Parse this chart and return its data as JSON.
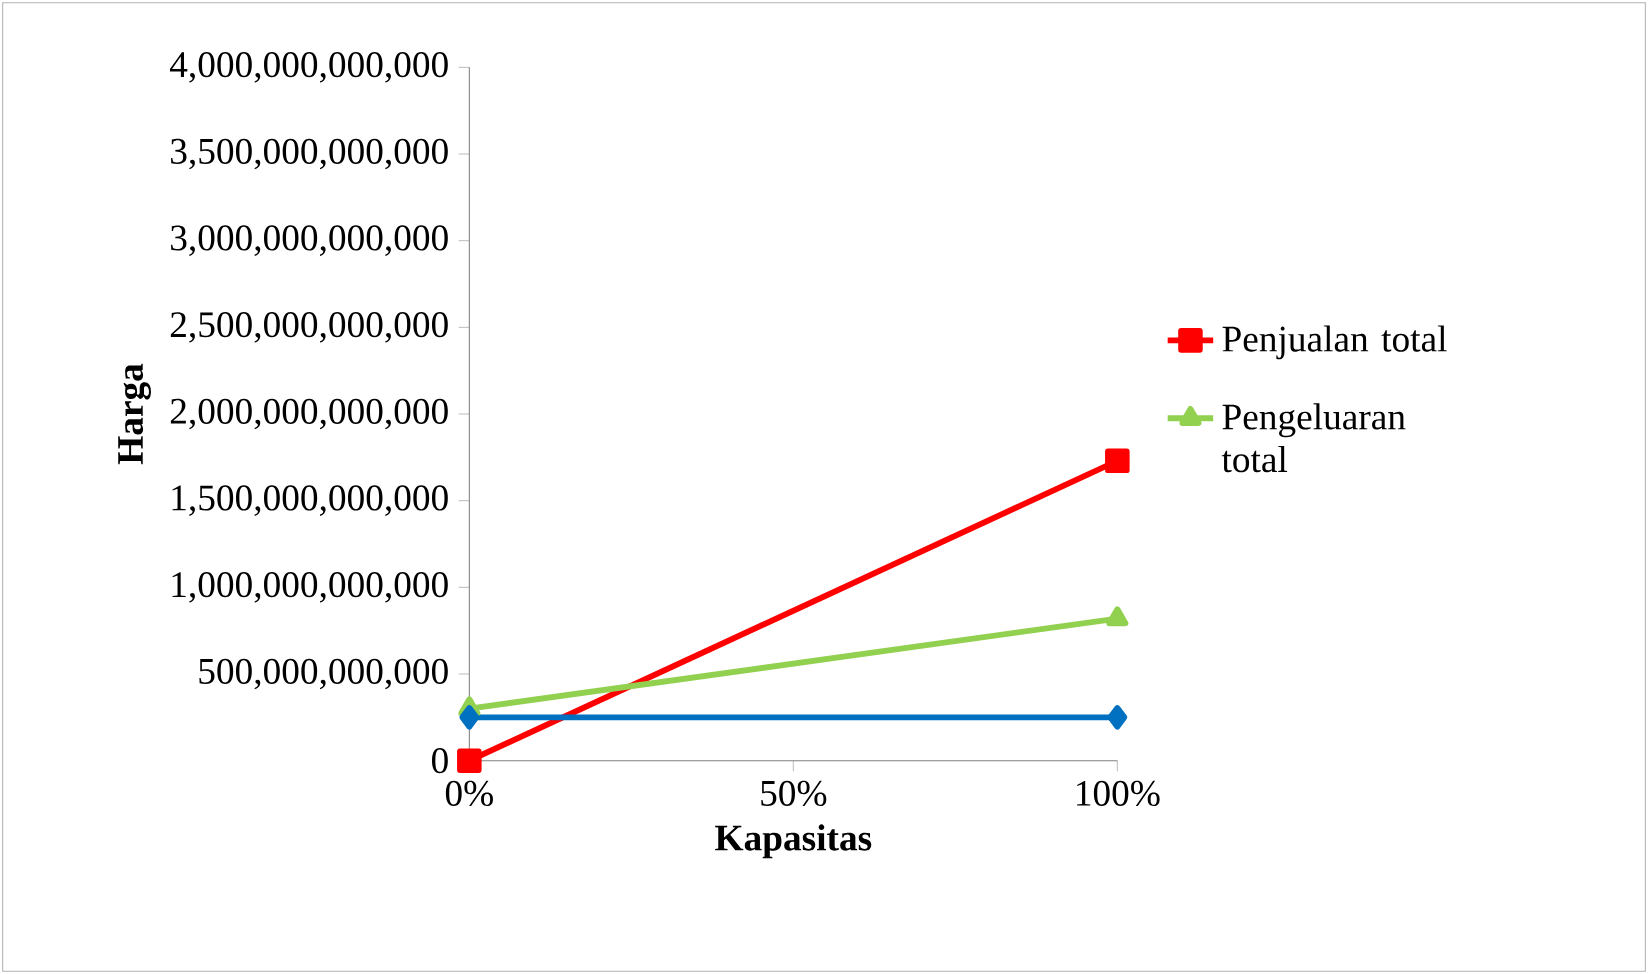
{
  "chart_data": {
    "type": "line",
    "xlabel": "Kapasitas",
    "ylabel": "Harga",
    "x": [
      0,
      100
    ],
    "series": [
      {
        "color": "#ff0000",
        "marker": "square",
        "values": [
          0,
          1730000000000
        ],
        "name": "Penjualan total"
      },
      {
        "color": "#92d050",
        "marker": "triangle",
        "values": [
          300000000000,
          820000000000
        ],
        "name": "Pengeluaran total"
      },
      {
        "color": "#0070c0",
        "marker": "diamond",
        "values": [
          250000000000,
          250000000000
        ]
      }
    ],
    "xlim": [
      0,
      100
    ],
    "xticks": [
      {
        "value": 0,
        "label": "0%"
      },
      {
        "value": 50,
        "label": "50%"
      },
      {
        "value": 100,
        "label": "100%"
      }
    ],
    "ylim": [
      0,
      4000000000000
    ],
    "yticks": [
      0,
      {
        "value": 500000000000,
        "label": "500,000,000,000"
      },
      {
        "value": 1000000000000,
        "label": "1,000,000,000,000"
      },
      {
        "value": 1500000000000,
        "label": "1,500,000,000,000"
      },
      {
        "value": 2000000000000,
        "label": "2,000,000,000,000"
      },
      {
        "value": 2500000000000,
        "label": "2,500,000,000,000"
      },
      {
        "value": 3000000000000,
        "label": "3,000,000,000,000"
      },
      {
        "value": 3500000000000,
        "label": "3,500,000,000,000"
      },
      {
        "value": 4000000000000,
        "label": "4,000,000,000,000"
      }
    ],
    "grid": false,
    "legend": "right"
  }
}
